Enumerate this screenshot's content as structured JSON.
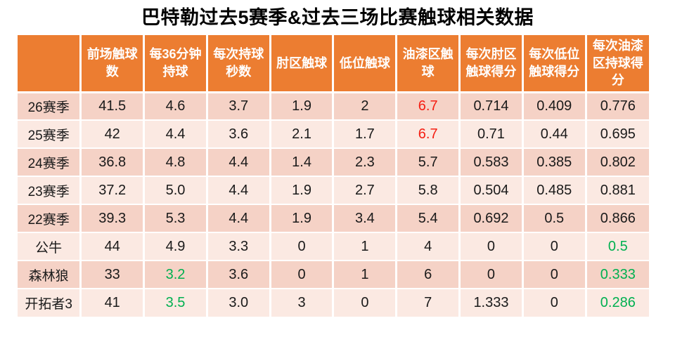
{
  "title": "巴特勒过去5赛季&过去三场比赛触球相关数据",
  "colors": {
    "header_bg": "#EC7D31",
    "header_text": "#FFFFFF",
    "band_dark": "#F5D2C6",
    "band_light": "#FBE9E2",
    "text": "#1A1A1A",
    "highlight_red": "#F51E12",
    "highlight_green": "#00B050",
    "grid": "#FFFFFF"
  },
  "chart_data": {
    "type": "table",
    "title": "巴特勒过去5赛季&过去三场比赛触球相关数据",
    "columns": [
      "",
      "前场触球数",
      "每36分钟持球",
      "每次持球秒数",
      "肘区触球",
      "低位触球",
      "油漆区触球",
      "每次肘区触球得分",
      "每次低位触球得分",
      "每次油漆区持球得分"
    ],
    "rows": [
      {
        "label": "26赛季",
        "values": [
          "41.5",
          "4.6",
          "3.7",
          "1.9",
          "2",
          "6.7",
          "0.714",
          "0.409",
          "0.776"
        ],
        "value_colors": [
          null,
          null,
          null,
          null,
          null,
          "red",
          null,
          null,
          null
        ]
      },
      {
        "label": "25赛季",
        "values": [
          "42",
          "4.4",
          "3.6",
          "2.1",
          "1.7",
          "6.7",
          "0.71",
          "0.44",
          "0.695"
        ],
        "value_colors": [
          null,
          null,
          null,
          null,
          null,
          "red",
          null,
          null,
          null
        ]
      },
      {
        "label": "24赛季",
        "values": [
          "36.8",
          "4.8",
          "4.4",
          "1.4",
          "2.3",
          "5.7",
          "0.583",
          "0.385",
          "0.802"
        ],
        "value_colors": [
          null,
          null,
          null,
          null,
          null,
          null,
          null,
          null,
          null
        ]
      },
      {
        "label": "23赛季",
        "values": [
          "37.2",
          "5.0",
          "4.4",
          "1.9",
          "2.7",
          "5.8",
          "0.504",
          "0.485",
          "0.881"
        ],
        "value_colors": [
          null,
          null,
          null,
          null,
          null,
          null,
          null,
          null,
          null
        ]
      },
      {
        "label": "22赛季",
        "values": [
          "39.3",
          "5.3",
          "4.4",
          "1.9",
          "3.4",
          "5.4",
          "0.692",
          "0.5",
          "0.866"
        ],
        "value_colors": [
          null,
          null,
          null,
          null,
          null,
          null,
          null,
          null,
          null
        ]
      },
      {
        "label": "公牛",
        "values": [
          "44",
          "4.9",
          "3.3",
          "0",
          "1",
          "4",
          "0",
          "0",
          "0.5"
        ],
        "value_colors": [
          null,
          null,
          null,
          null,
          null,
          null,
          null,
          null,
          "green"
        ]
      },
      {
        "label": "森林狼",
        "values": [
          "33",
          "3.2",
          "3.6",
          "0",
          "1",
          "6",
          "0",
          "0",
          "0.333"
        ],
        "value_colors": [
          null,
          "green",
          null,
          null,
          null,
          null,
          null,
          null,
          "green"
        ]
      },
      {
        "label": "开拓者3",
        "values": [
          "41",
          "3.5",
          "3.0",
          "3",
          "0",
          "7",
          "1.333",
          "0",
          "0.286"
        ],
        "value_colors": [
          null,
          "green",
          null,
          null,
          null,
          null,
          null,
          null,
          "green"
        ]
      }
    ]
  }
}
